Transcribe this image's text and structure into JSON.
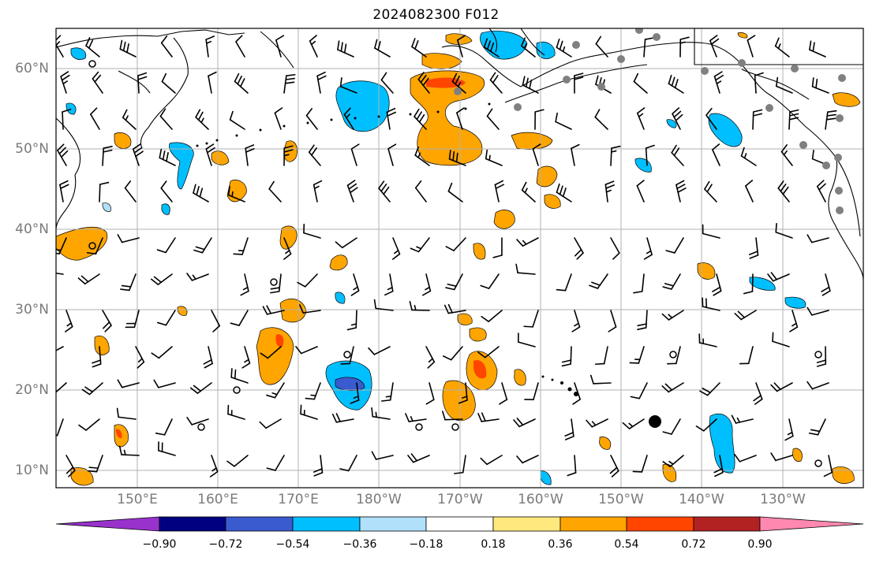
{
  "title": "2024082300 F012",
  "map": {
    "lat_labels": [
      "60°N",
      "50°N",
      "40°N",
      "30°N",
      "20°N",
      "10°N"
    ],
    "lon_labels": [
      "150°E",
      "160°E",
      "170°E",
      "180°W",
      "170°W",
      "160°W",
      "150°W",
      "140°W",
      "130°W"
    ]
  },
  "colorbar": {
    "ticks": [
      "−0.90",
      "−0.72",
      "−0.54",
      "−0.36",
      "−0.18",
      "0.18",
      "0.36",
      "0.54",
      "0.72",
      "0.90"
    ],
    "colors": [
      "#9932cc",
      "#000080",
      "#3a5bcf",
      "#00bfff",
      "#b0e0fa",
      "#ffffff",
      "#ffe97f",
      "#ffa500",
      "#ff4500",
      "#b22222",
      "#ff88b0"
    ]
  }
}
